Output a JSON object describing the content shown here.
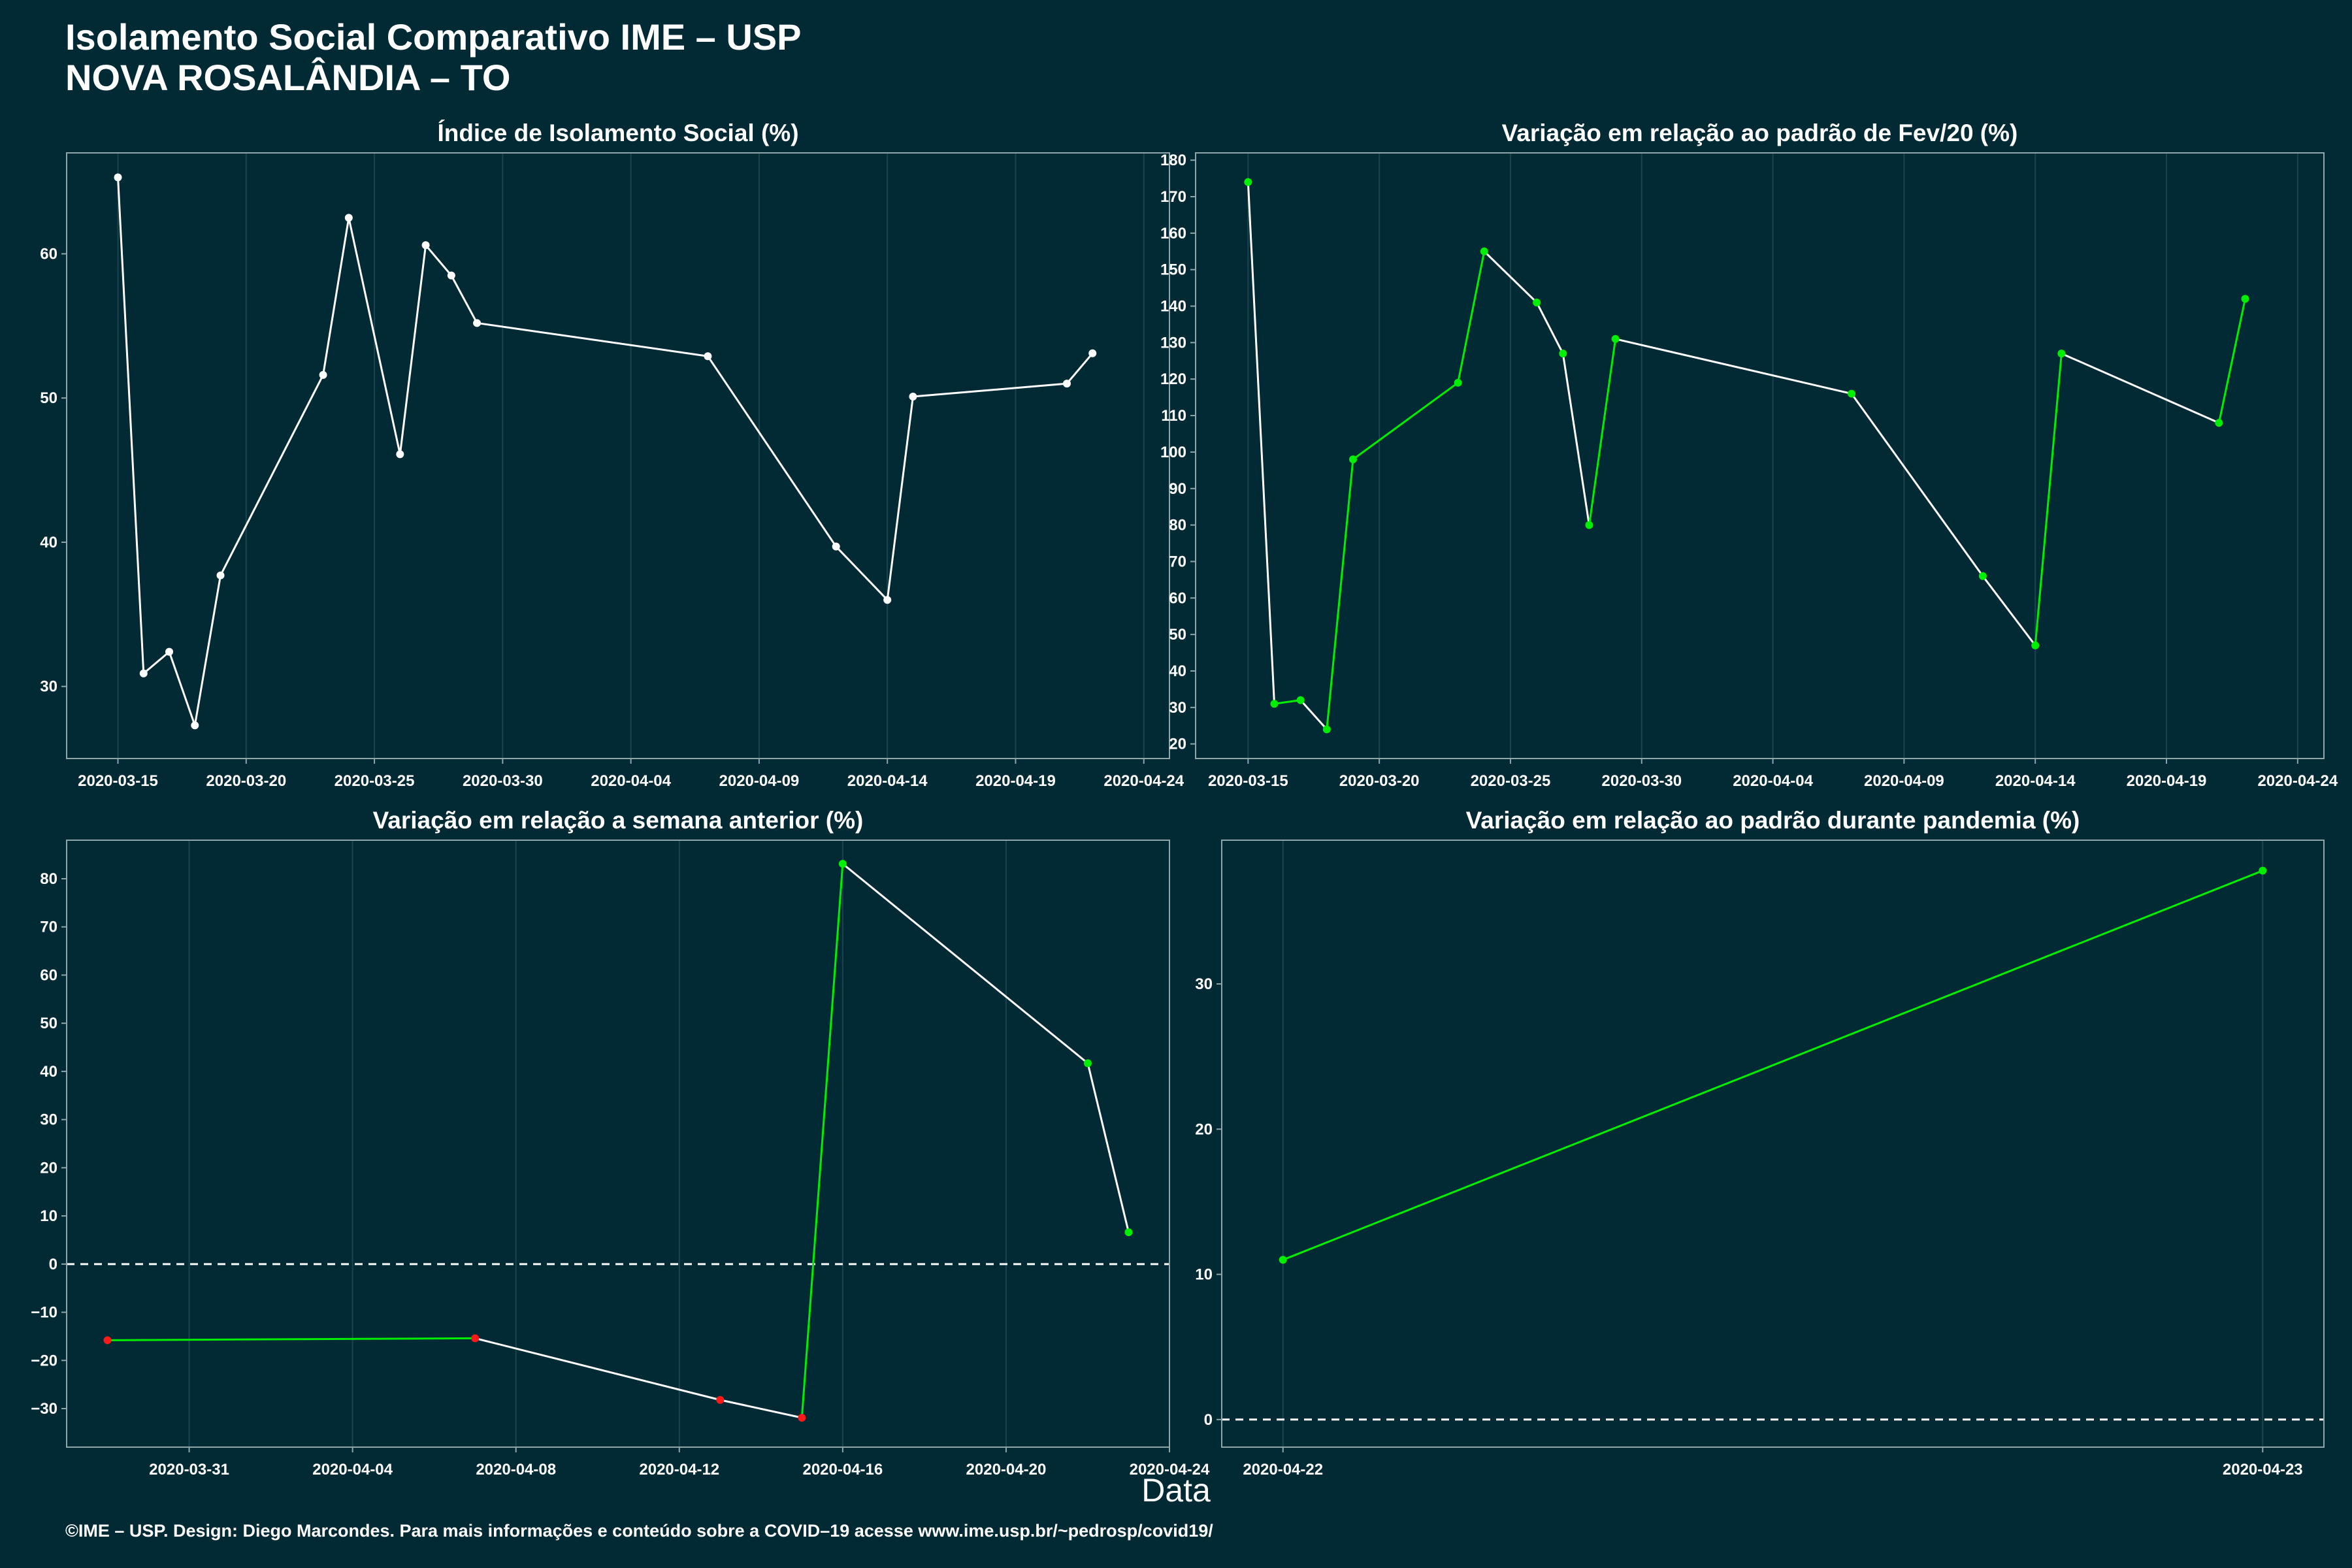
{
  "header": {
    "title_line1": "Isolamento Social Comparativo IME – USP",
    "title_line2": "NOVA ROSALÂNDIA – TO"
  },
  "x_axis_title": "Data",
  "footer": "©IME – USP. Design: Diego Marcondes. Para mais informações e conteúdo sobre a COVID–19 acesse www.ime.usp.br/~pedrosp/covid19/",
  "colors": {
    "background": "#022a35",
    "line_default": "#ffffff",
    "line_up": "#00ee00",
    "point_up": "#00ee00",
    "point_down": "#ff1a1a",
    "point_neutral": "#ffffff",
    "grid": "#1a4550",
    "border": "#8fa6aa"
  },
  "chart_data": [
    {
      "type": "line",
      "title": "Índice de Isolamento Social (%)",
      "xlabel": "",
      "ylabel": "",
      "x_type": "date",
      "xlim": [
        "2020-03-13",
        "2020-04-25"
      ],
      "ylim": [
        25,
        67
      ],
      "x_ticks": [
        "2020-03-15",
        "2020-03-20",
        "2020-03-25",
        "2020-03-30",
        "2020-04-04",
        "2020-04-09",
        "2020-04-14",
        "2020-04-19",
        "2020-04-24"
      ],
      "y_ticks": [
        30,
        40,
        50,
        60
      ],
      "colored": false,
      "series": [
        {
          "x": [
            "2020-03-15",
            "2020-03-16",
            "2020-03-17",
            "2020-03-18",
            "2020-03-19",
            "2020-03-23",
            "2020-03-24",
            "2020-03-26",
            "2020-03-27",
            "2020-03-28",
            "2020-03-29",
            "2020-04-07",
            "2020-04-12",
            "2020-04-14",
            "2020-04-15",
            "2020-04-21",
            "2020-04-22"
          ],
          "values": [
            65.3,
            30.9,
            32.4,
            27.3,
            37.7,
            51.6,
            62.5,
            46.1,
            60.6,
            58.5,
            55.2,
            52.9,
            39.7,
            36.0,
            50.1,
            51.0,
            53.1
          ]
        }
      ]
    },
    {
      "type": "line",
      "title": "Variação em relação ao padrão de Fev/20 (%)",
      "xlabel": "",
      "ylabel": "",
      "x_type": "date",
      "xlim": [
        "2020-03-13",
        "2020-04-25"
      ],
      "ylim": [
        16,
        182
      ],
      "x_ticks": [
        "2020-03-15",
        "2020-03-20",
        "2020-03-25",
        "2020-03-30",
        "2020-04-04",
        "2020-04-09",
        "2020-04-14",
        "2020-04-19",
        "2020-04-24"
      ],
      "y_ticks": [
        20,
        30,
        40,
        50,
        60,
        70,
        80,
        90,
        100,
        110,
        120,
        130,
        140,
        150,
        160,
        170,
        180
      ],
      "colored": true,
      "series": [
        {
          "x": [
            "2020-03-15",
            "2020-03-16",
            "2020-03-17",
            "2020-03-18",
            "2020-03-19",
            "2020-03-23",
            "2020-03-24",
            "2020-03-26",
            "2020-03-27",
            "2020-03-28",
            "2020-03-29",
            "2020-04-07",
            "2020-04-12",
            "2020-04-14",
            "2020-04-15",
            "2020-04-21",
            "2020-04-22"
          ],
          "values": [
            174,
            31,
            32,
            24,
            98,
            119,
            155,
            141,
            127,
            80,
            131,
            116,
            66,
            47,
            127,
            108,
            142
          ]
        }
      ]
    },
    {
      "type": "line",
      "title": "Variação em relação a semana anterior (%)",
      "xlabel": "",
      "ylabel": "",
      "x_type": "date",
      "xlim": [
        "2020-03-28",
        "2020-04-24"
      ],
      "ylim": [
        -38,
        88
      ],
      "x_ticks": [
        "2020-03-31",
        "2020-04-04",
        "2020-04-08",
        "2020-04-12",
        "2020-04-16",
        "2020-04-20",
        "2020-04-24"
      ],
      "y_ticks": [
        -30,
        -20,
        -10,
        0,
        10,
        20,
        30,
        40,
        50,
        60,
        70,
        80
      ],
      "zero_line": true,
      "colored": true,
      "series": [
        {
          "x": [
            "2020-03-29",
            "2020-04-07",
            "2020-04-13",
            "2020-04-15",
            "2020-04-16",
            "2020-04-22",
            "2020-04-23"
          ],
          "values": [
            -15.8,
            -15.4,
            -28.2,
            -31.9,
            83.1,
            41.7,
            6.6
          ]
        }
      ]
    },
    {
      "type": "line",
      "title": "Variação em relação ao padrão durante pandemia (%)",
      "xlabel": "",
      "ylabel": "",
      "x_type": "date",
      "xlim": [
        "2020-04-21T22:30",
        "2020-04-23T01:30"
      ],
      "ylim": [
        -1.9,
        39.9
      ],
      "x_ticks": [
        "2020-04-22",
        "2020-04-23"
      ],
      "y_ticks": [
        0,
        10,
        20,
        30
      ],
      "zero_line": true,
      "colored": true,
      "series": [
        {
          "x": [
            "2020-04-22",
            "2020-04-23"
          ],
          "values": [
            11.0,
            37.8
          ]
        }
      ]
    }
  ]
}
